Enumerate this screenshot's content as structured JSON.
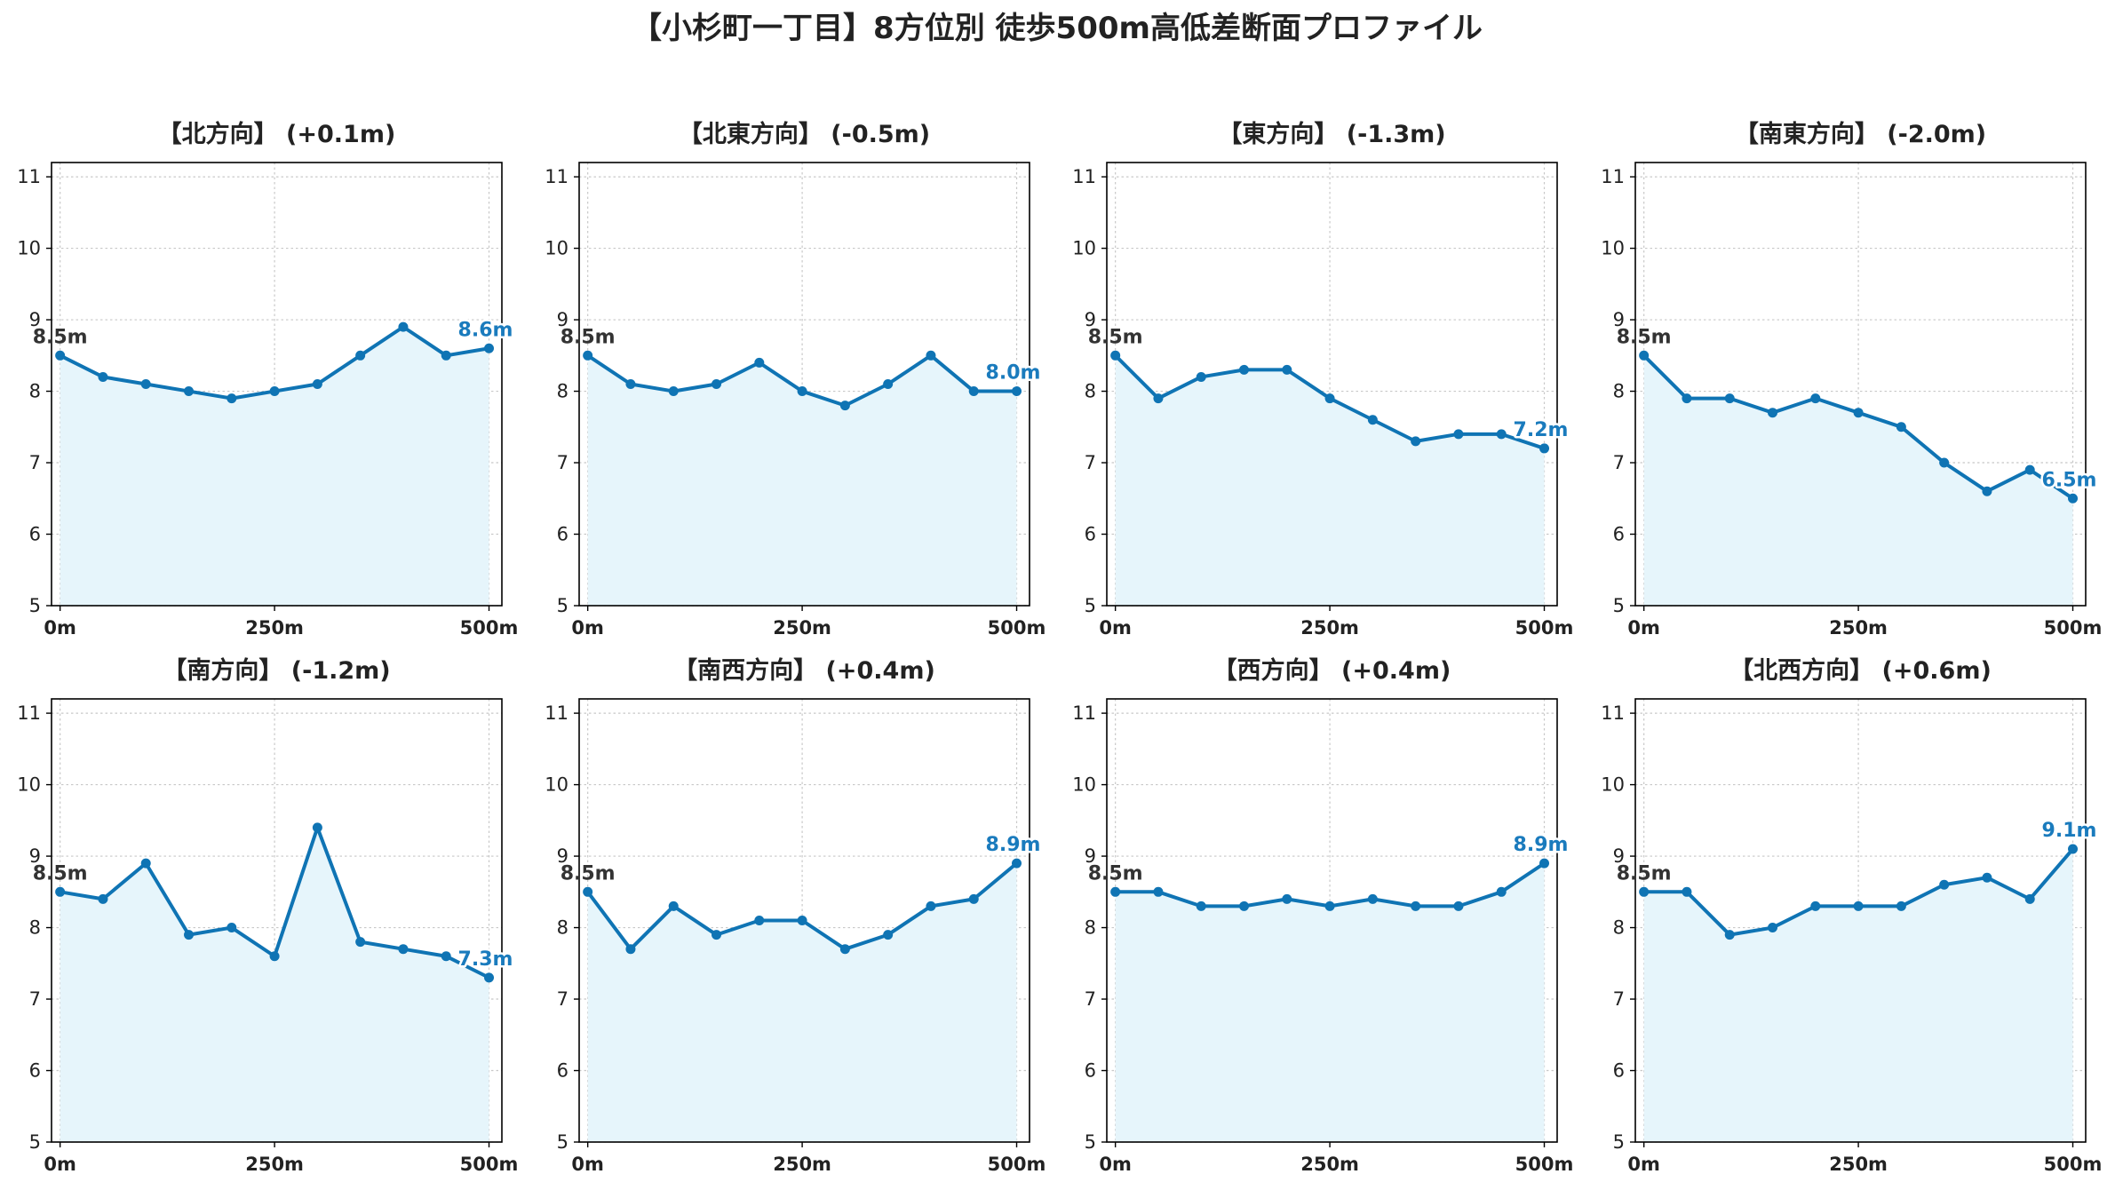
{
  "figure": {
    "title": "【小杉町一丁目】8方位別 徒歩500m高低差断面プロファイル"
  },
  "colors": {
    "line": "#0f74b4",
    "fill": "#e6f5fb",
    "end_label": "#1a7bbd",
    "start_label": "#333333",
    "grid": "#c8c8c8"
  },
  "chart_data": [
    {
      "type": "line",
      "title": "【北方向】 (+0.1m)",
      "x": [
        0,
        50,
        100,
        150,
        200,
        250,
        300,
        350,
        400,
        450,
        500
      ],
      "y": [
        8.5,
        8.2,
        8.1,
        8.0,
        7.9,
        8.0,
        8.1,
        8.5,
        8.9,
        8.5,
        8.6
      ],
      "start_label": "8.5m",
      "end_label": "8.6m",
      "xticks": [
        "0m",
        "250m",
        "500m"
      ],
      "yticks": [
        5,
        6,
        7,
        8,
        9,
        10,
        11
      ],
      "ylim": [
        5,
        11.2
      ],
      "xlim": [
        -10,
        515
      ],
      "grid": true
    },
    {
      "type": "line",
      "title": "【北東方向】 (-0.5m)",
      "x": [
        0,
        50,
        100,
        150,
        200,
        250,
        300,
        350,
        400,
        450,
        500
      ],
      "y": [
        8.5,
        8.1,
        8.0,
        8.1,
        8.4,
        8.0,
        7.8,
        8.1,
        8.5,
        8.0,
        8.0
      ],
      "start_label": "8.5m",
      "end_label": "8.0m",
      "xticks": [
        "0m",
        "250m",
        "500m"
      ],
      "yticks": [
        5,
        6,
        7,
        8,
        9,
        10,
        11
      ],
      "ylim": [
        5,
        11.2
      ],
      "xlim": [
        -10,
        515
      ],
      "grid": true
    },
    {
      "type": "line",
      "title": "【東方向】 (-1.3m)",
      "x": [
        0,
        50,
        100,
        150,
        200,
        250,
        300,
        350,
        400,
        450,
        500
      ],
      "y": [
        8.5,
        7.9,
        8.2,
        8.3,
        8.3,
        7.9,
        7.6,
        7.3,
        7.4,
        7.4,
        7.2
      ],
      "start_label": "8.5m",
      "end_label": "7.2m",
      "xticks": [
        "0m",
        "250m",
        "500m"
      ],
      "yticks": [
        5,
        6,
        7,
        8,
        9,
        10,
        11
      ],
      "ylim": [
        5,
        11.2
      ],
      "xlim": [
        -10,
        515
      ],
      "grid": true
    },
    {
      "type": "line",
      "title": "【南東方向】 (-2.0m)",
      "x": [
        0,
        50,
        100,
        150,
        200,
        250,
        300,
        350,
        400,
        450,
        500
      ],
      "y": [
        8.5,
        7.9,
        7.9,
        7.7,
        7.9,
        7.7,
        7.5,
        7.0,
        6.6,
        6.9,
        6.5
      ],
      "start_label": "8.5m",
      "end_label": "6.5m",
      "xticks": [
        "0m",
        "250m",
        "500m"
      ],
      "yticks": [
        5,
        6,
        7,
        8,
        9,
        10,
        11
      ],
      "ylim": [
        5,
        11.2
      ],
      "xlim": [
        -10,
        515
      ],
      "grid": true
    },
    {
      "type": "line",
      "title": "【南方向】 (-1.2m)",
      "x": [
        0,
        50,
        100,
        150,
        200,
        250,
        300,
        350,
        400,
        450,
        500
      ],
      "y": [
        8.5,
        8.4,
        8.9,
        7.9,
        8.0,
        7.6,
        9.4,
        7.8,
        7.7,
        7.6,
        7.3
      ],
      "start_label": "8.5m",
      "end_label": "7.3m",
      "xticks": [
        "0m",
        "250m",
        "500m"
      ],
      "yticks": [
        5,
        6,
        7,
        8,
        9,
        10,
        11
      ],
      "ylim": [
        5,
        11.2
      ],
      "xlim": [
        -10,
        515
      ],
      "grid": true
    },
    {
      "type": "line",
      "title": "【南西方向】 (+0.4m)",
      "x": [
        0,
        50,
        100,
        150,
        200,
        250,
        300,
        350,
        400,
        450,
        500
      ],
      "y": [
        8.5,
        7.7,
        8.3,
        7.9,
        8.1,
        8.1,
        7.7,
        7.9,
        8.3,
        8.4,
        8.9
      ],
      "start_label": "8.5m",
      "end_label": "8.9m",
      "xticks": [
        "0m",
        "250m",
        "500m"
      ],
      "yticks": [
        5,
        6,
        7,
        8,
        9,
        10,
        11
      ],
      "ylim": [
        5,
        11.2
      ],
      "xlim": [
        -10,
        515
      ],
      "grid": true
    },
    {
      "type": "line",
      "title": "【西方向】 (+0.4m)",
      "x": [
        0,
        50,
        100,
        150,
        200,
        250,
        300,
        350,
        400,
        450,
        500
      ],
      "y": [
        8.5,
        8.5,
        8.3,
        8.3,
        8.4,
        8.3,
        8.4,
        8.3,
        8.3,
        8.5,
        8.9
      ],
      "start_label": "8.5m",
      "end_label": "8.9m",
      "xticks": [
        "0m",
        "250m",
        "500m"
      ],
      "yticks": [
        5,
        6,
        7,
        8,
        9,
        10,
        11
      ],
      "ylim": [
        5,
        11.2
      ],
      "xlim": [
        -10,
        515
      ],
      "grid": true
    },
    {
      "type": "line",
      "title": "【北西方向】 (+0.6m)",
      "x": [
        0,
        50,
        100,
        150,
        200,
        250,
        300,
        350,
        400,
        450,
        500
      ],
      "y": [
        8.5,
        8.5,
        7.9,
        8.0,
        8.3,
        8.3,
        8.3,
        8.6,
        8.7,
        8.4,
        9.1
      ],
      "start_label": "8.5m",
      "end_label": "9.1m",
      "xticks": [
        "0m",
        "250m",
        "500m"
      ],
      "yticks": [
        5,
        6,
        7,
        8,
        9,
        10,
        11
      ],
      "ylim": [
        5,
        11.2
      ],
      "xlim": [
        -10,
        515
      ],
      "grid": true
    }
  ]
}
